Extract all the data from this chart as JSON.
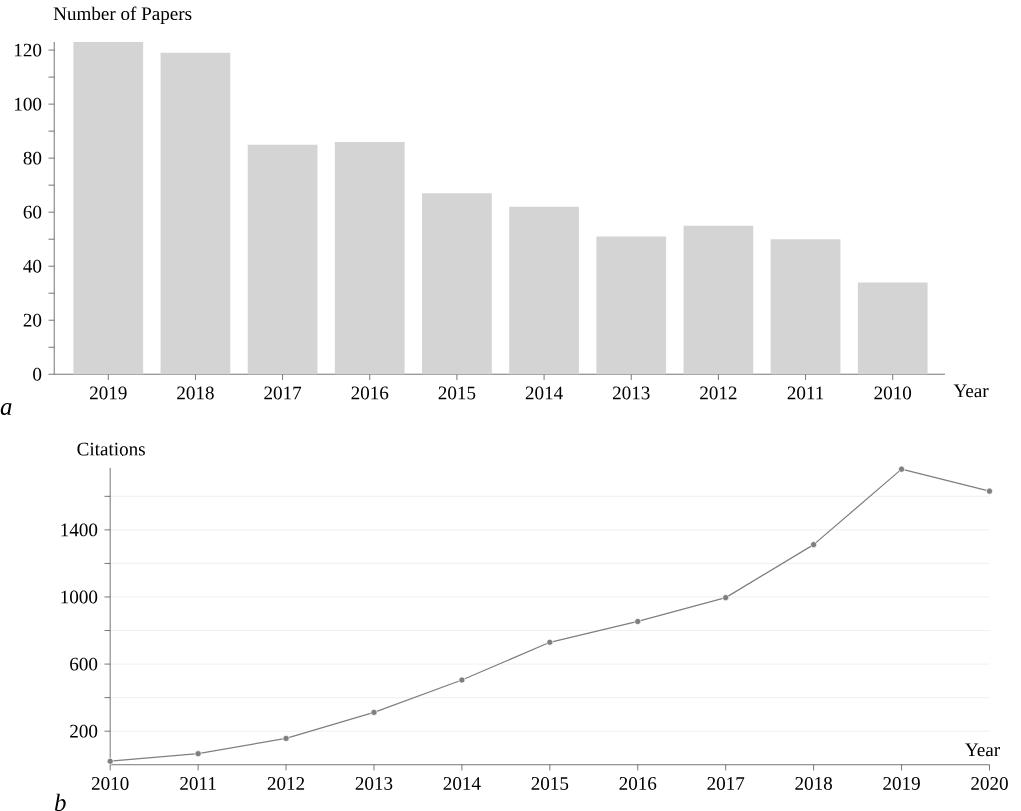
{
  "chart_data": [
    {
      "type": "bar",
      "ylabel": "Number of Papers",
      "xlabel": "Year",
      "annotations": [
        "a"
      ],
      "categories": [
        "2019",
        "2018",
        "2017",
        "2016",
        "2015",
        "2014",
        "2013",
        "2012",
        "2011",
        "2010"
      ],
      "values": [
        123,
        119,
        85,
        86,
        67,
        62,
        51,
        55,
        50,
        34
      ],
      "color": "#d4d4d4",
      "ylim": [
        0,
        123
      ],
      "yticks": [
        0,
        {
          "value": 10,
          "label": null
        },
        20,
        {
          "value": 30,
          "label": null
        },
        40,
        {
          "value": 50,
          "label": null
        },
        60,
        {
          "value": 70,
          "label": null
        },
        80,
        {
          "value": 90,
          "label": null
        },
        100,
        {
          "value": 110,
          "label": null
        },
        120
      ]
    },
    {
      "type": "line",
      "ylabel": "Citations",
      "xlabel": "Year",
      "annotations": [
        "b"
      ],
      "x": [
        2010,
        2011,
        2012,
        2013,
        2014,
        2015,
        2016,
        2017,
        2018,
        2019,
        2020
      ],
      "values": [
        21,
        66,
        157,
        312,
        505,
        730,
        854,
        996,
        1312,
        1762,
        1631
      ],
      "color": "#7f7f7f",
      "marker": "circle",
      "xlim": [
        2010,
        2020
      ],
      "xticks": [
        2010,
        2011,
        2012,
        2013,
        2014,
        2015,
        2016,
        2017,
        2018,
        2019,
        2020
      ],
      "ylim": [
        0,
        1770
      ],
      "yticks": [
        200,
        {
          "value": 400,
          "label": null
        },
        600,
        {
          "value": 800,
          "label": null
        },
        1000,
        {
          "value": 1200,
          "label": null
        },
        1400,
        {
          "value": 1600,
          "label": null
        }
      ],
      "grid": "y"
    }
  ]
}
